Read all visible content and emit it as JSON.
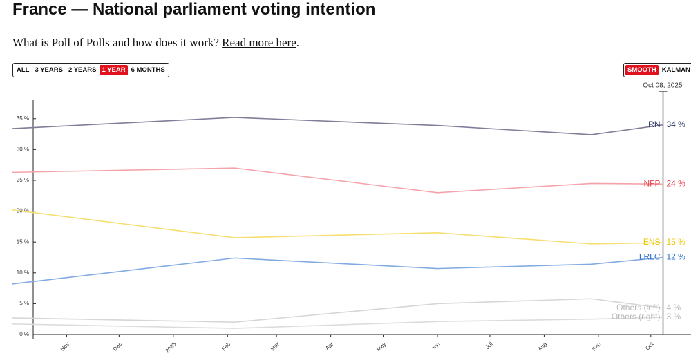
{
  "page": {
    "title": "France — National parliament voting intention",
    "intro": {
      "text": "What is Poll of Polls and how does it work?",
      "link": "Read more here",
      "end": "."
    },
    "range_buttons": [
      {
        "label": "ALL",
        "active": false
      },
      {
        "label": "3 YEARS",
        "active": false
      },
      {
        "label": "2 YEARS",
        "active": false
      },
      {
        "label": "1 YEAR",
        "active": true
      },
      {
        "label": "6 MONTHS",
        "active": false
      }
    ],
    "method_buttons": [
      {
        "label": "SMOOTH",
        "active": true
      },
      {
        "label": "KALMAN",
        "active": false
      }
    ]
  },
  "chart_data": {
    "type": "line",
    "date_label": "Oct 08, 2025",
    "x": [
      "2024-10-01",
      "2025-02-05",
      "2025-06-01",
      "2025-08-28",
      "2025-10-08"
    ],
    "xlim": [
      "2024-10-01",
      "2025-10-24"
    ],
    "xticks": [
      {
        "value": "2024-11-01",
        "label": "Nov"
      },
      {
        "value": "2024-12-01",
        "label": "Dec"
      },
      {
        "value": "2025-01-01",
        "label": "2025"
      },
      {
        "value": "2025-02-01",
        "label": "Feb"
      },
      {
        "value": "2025-03-01",
        "label": "Mar"
      },
      {
        "value": "2025-04-01",
        "label": "Apr"
      },
      {
        "value": "2025-05-01",
        "label": "May"
      },
      {
        "value": "2025-06-01",
        "label": "Jun"
      },
      {
        "value": "2025-07-01",
        "label": "Jul"
      },
      {
        "value": "2025-08-01",
        "label": "Aug"
      },
      {
        "value": "2025-09-01",
        "label": "Sep"
      },
      {
        "value": "2025-10-01",
        "label": "Oct"
      }
    ],
    "ylim": [
      0,
      38
    ],
    "yticks": [
      {
        "value": 0,
        "label": "0 %"
      },
      {
        "value": 5,
        "label": "5 %"
      },
      {
        "value": 10,
        "label": "10 %"
      },
      {
        "value": 15,
        "label": "15 %"
      },
      {
        "value": 20,
        "label": "20 %"
      },
      {
        "value": 25,
        "label": "25 %"
      },
      {
        "value": 30,
        "label": "30 %"
      },
      {
        "value": 35,
        "label": "35 %"
      }
    ],
    "series": [
      {
        "name": "RN",
        "color": "#837b98",
        "label_color": "#1e2a5c",
        "values": [
          33.4,
          35.2,
          33.9,
          32.4,
          34
        ],
        "end_label": "34 %"
      },
      {
        "name": "NFP",
        "color": "#f4a3aa",
        "label_color": "#e8434f",
        "values": [
          26.3,
          27.0,
          23.0,
          24.5,
          24.4
        ],
        "end_label": "24 %"
      },
      {
        "name": "ENS",
        "color": "#f6df70",
        "label_color": "#f0c300",
        "values": [
          20.2,
          15.7,
          16.5,
          14.7,
          14.9
        ],
        "end_label": "15 %"
      },
      {
        "name": "LRLC",
        "color": "#82aae2",
        "label_color": "#2a6fc9",
        "values": [
          8.2,
          12.4,
          10.7,
          11.4,
          12.5
        ],
        "end_label": "12 %"
      },
      {
        "name": "Others (left)",
        "color": "#d6d6d6",
        "label_color": "#b8b8b8",
        "values": [
          2.7,
          2.0,
          5.0,
          5.8,
          4.3
        ],
        "end_label": "4 %"
      },
      {
        "name": "Others (right)",
        "color": "#dcdcdc",
        "label_color": "#b8b8b8",
        "values": [
          1.7,
          1.0,
          2.1,
          2.5,
          2.8
        ],
        "end_label": "3 %"
      }
    ]
  }
}
